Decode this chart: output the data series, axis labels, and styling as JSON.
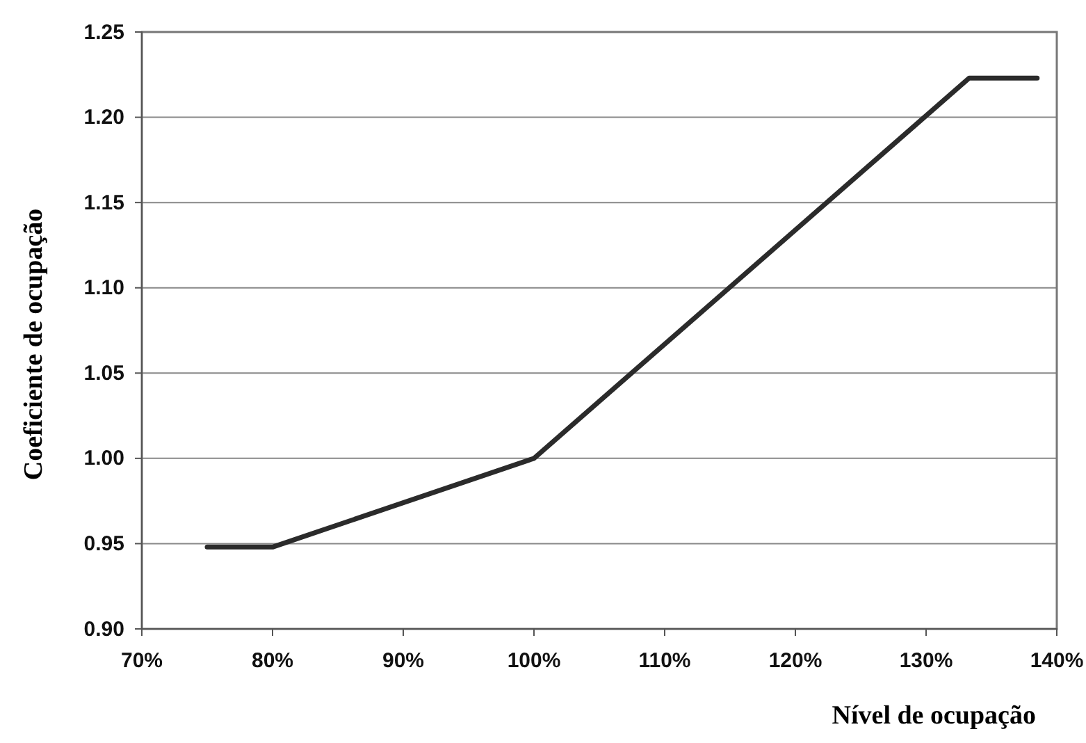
{
  "chart_data": {
    "type": "line",
    "xlabel": "Nível de ocupação",
    "ylabel": "Coeficiente de ocupação",
    "x": [
      75,
      80,
      100,
      133.3,
      138.5
    ],
    "series": [
      {
        "color": "#2b2b2b",
        "values": [
          0.948,
          0.948,
          1.0,
          1.223,
          1.223
        ]
      }
    ],
    "xlim": [
      70,
      140
    ],
    "ylim": [
      0.9,
      1.25
    ],
    "xticks": [
      {
        "value": 70,
        "label": "70%"
      },
      {
        "value": 80,
        "label": "80%"
      },
      {
        "value": 90,
        "label": "90%"
      },
      {
        "value": 100,
        "label": "100%"
      },
      {
        "value": 110,
        "label": "110%"
      },
      {
        "value": 120,
        "label": "120%"
      },
      {
        "value": 130,
        "label": "130%"
      },
      {
        "value": 140,
        "label": "140%"
      }
    ],
    "yticks": [
      {
        "value": 0.9,
        "label": "0.90"
      },
      {
        "value": 0.95,
        "label": "0.95"
      },
      {
        "value": 1.0,
        "label": "1.00"
      },
      {
        "value": 1.05,
        "label": "1.05"
      },
      {
        "value": 1.1,
        "label": "1.10"
      },
      {
        "value": 1.15,
        "label": "1.15"
      },
      {
        "value": 1.2,
        "label": "1.20"
      },
      {
        "value": 1.25,
        "label": "1.25"
      }
    ],
    "grid": "y",
    "line_style": "solid",
    "marker": "none"
  }
}
